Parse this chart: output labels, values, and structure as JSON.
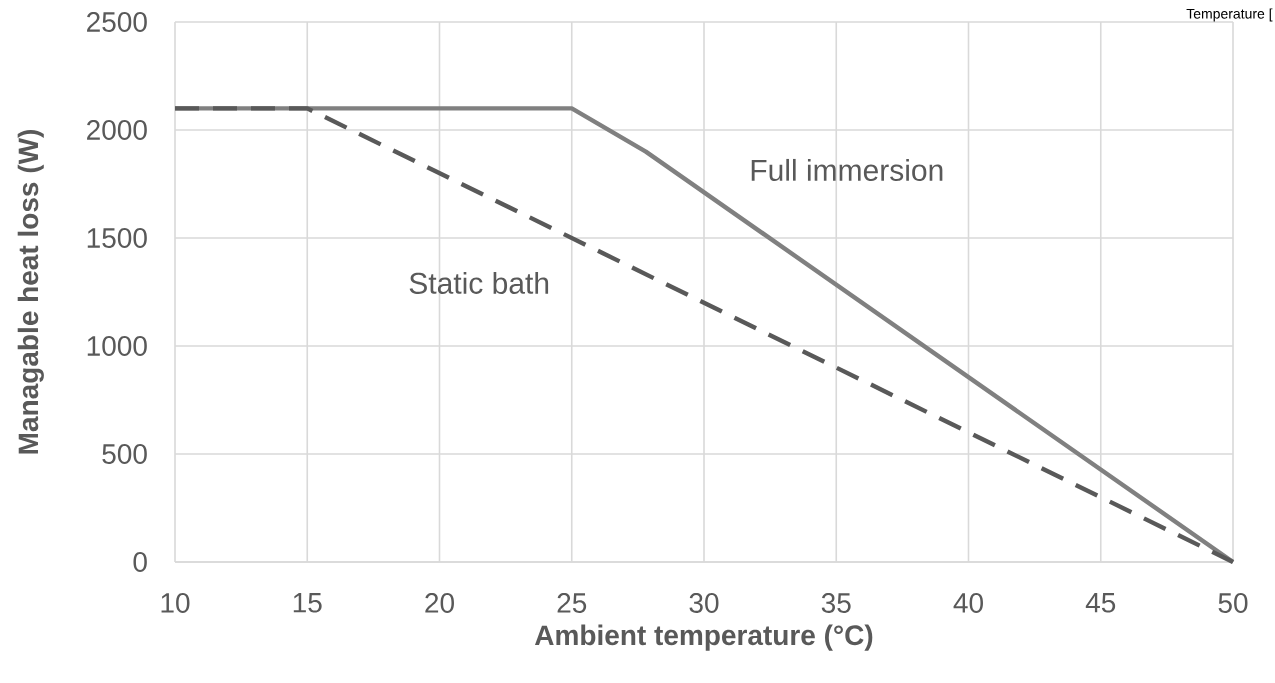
{
  "chart_data": {
    "type": "line",
    "xlabel": "Ambient temperature (°C)",
    "ylabel": "Managable heat loss (W)",
    "xlim": [
      10,
      50
    ],
    "xticks": [
      10,
      15,
      20,
      25,
      30,
      35,
      40,
      45,
      50
    ],
    "ylim": [
      0,
      2500
    ],
    "yticks": [
      0,
      500,
      1000,
      1500,
      2000,
      2500
    ],
    "grid": true,
    "legend": false,
    "marker": "none",
    "series": [
      {
        "name": "Full immersion",
        "color": "#808080",
        "line_style": "solid",
        "x": [
          10,
          25,
          27.8,
          50
        ],
        "values": [
          2100,
          2100,
          1900,
          0
        ]
      },
      {
        "name": "Static bath",
        "color": "#595959",
        "line_style": "dashed",
        "x": [
          10,
          15,
          50
        ],
        "values": [
          2100,
          2100,
          0
        ]
      }
    ],
    "annotations": [
      "Temperature ["
    ]
  }
}
